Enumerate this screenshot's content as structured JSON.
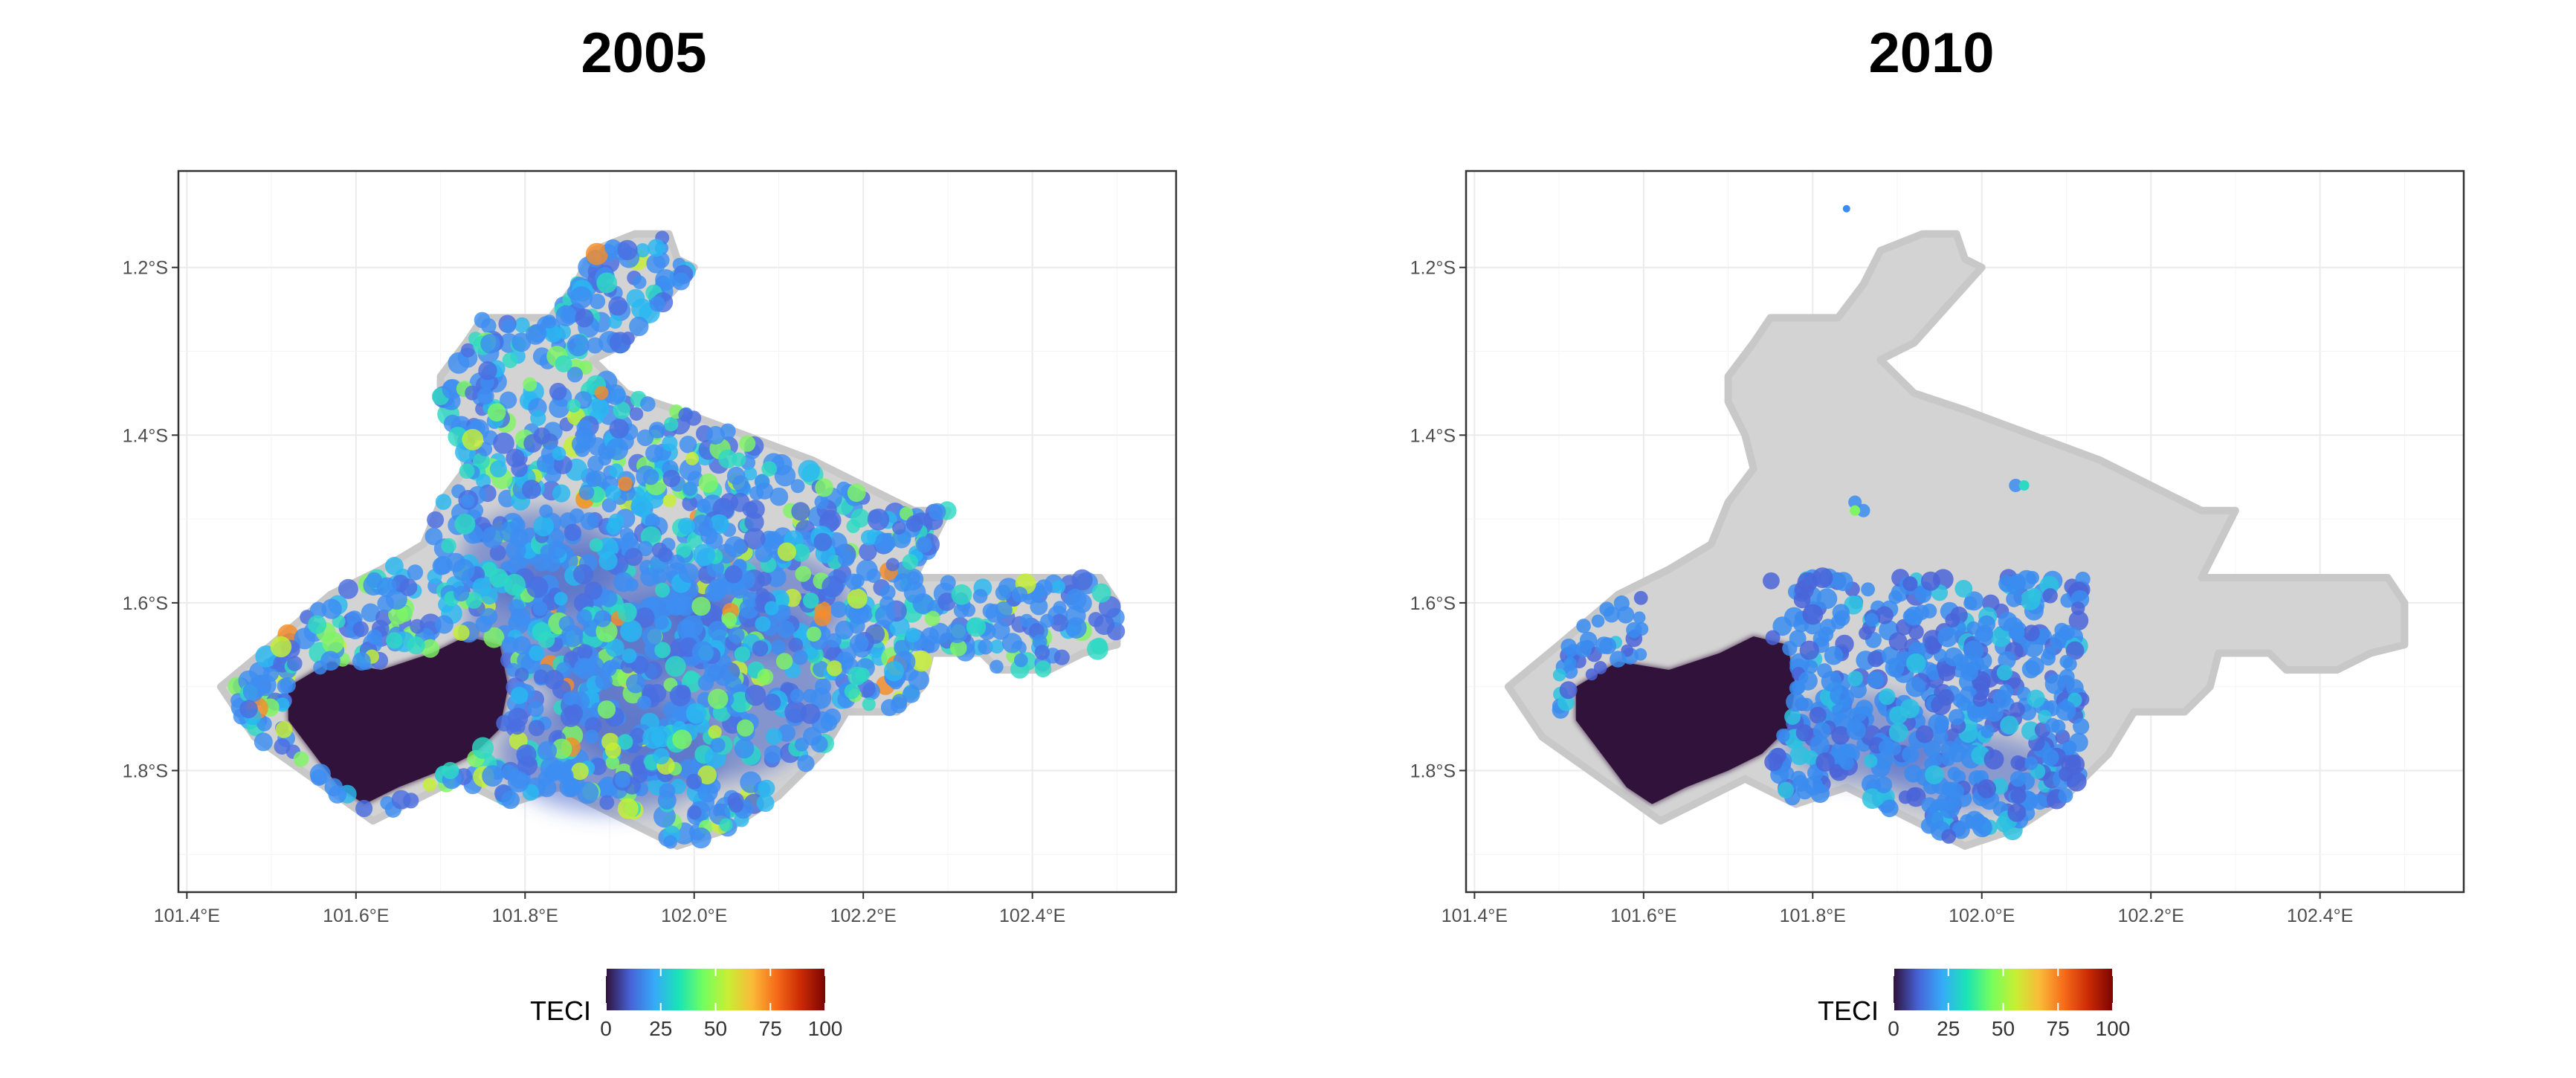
{
  "panels": [
    {
      "title": "2005",
      "y_ticks": [
        "1.2°S",
        "1.4°S",
        "1.6°S",
        "1.8°S"
      ],
      "x_ticks": [
        "101.4°E",
        "101.6°E",
        "101.8°E",
        "102.0°E",
        "102.2°E",
        "102.4°E"
      ],
      "legend": {
        "title": "TECI",
        "ticks": [
          "0",
          "25",
          "50",
          "75",
          "100"
        ]
      }
    },
    {
      "title": "2010",
      "y_ticks": [
        "1.2°S",
        "1.4°S",
        "1.6°S",
        "1.8°S"
      ],
      "x_ticks": [
        "101.4°E",
        "101.6°E",
        "101.8°E",
        "102.0°E",
        "102.2°E",
        "102.4°E"
      ],
      "legend": {
        "title": "TECI",
        "ticks": [
          "0",
          "25",
          "50",
          "75",
          "100"
        ]
      }
    }
  ],
  "map": {
    "x_range": [
      101.39,
      102.57
    ],
    "y_range": [
      -1.085,
      -1.945
    ],
    "region_color": "#d3d3d3",
    "colorscale": [
      "#30123b",
      "#4662d7",
      "#36aaf9",
      "#1ae4b6",
      "#72fe5e",
      "#c7ef34",
      "#faba39",
      "#f66b19",
      "#ca2a04",
      "#7a0403"
    ]
  }
}
